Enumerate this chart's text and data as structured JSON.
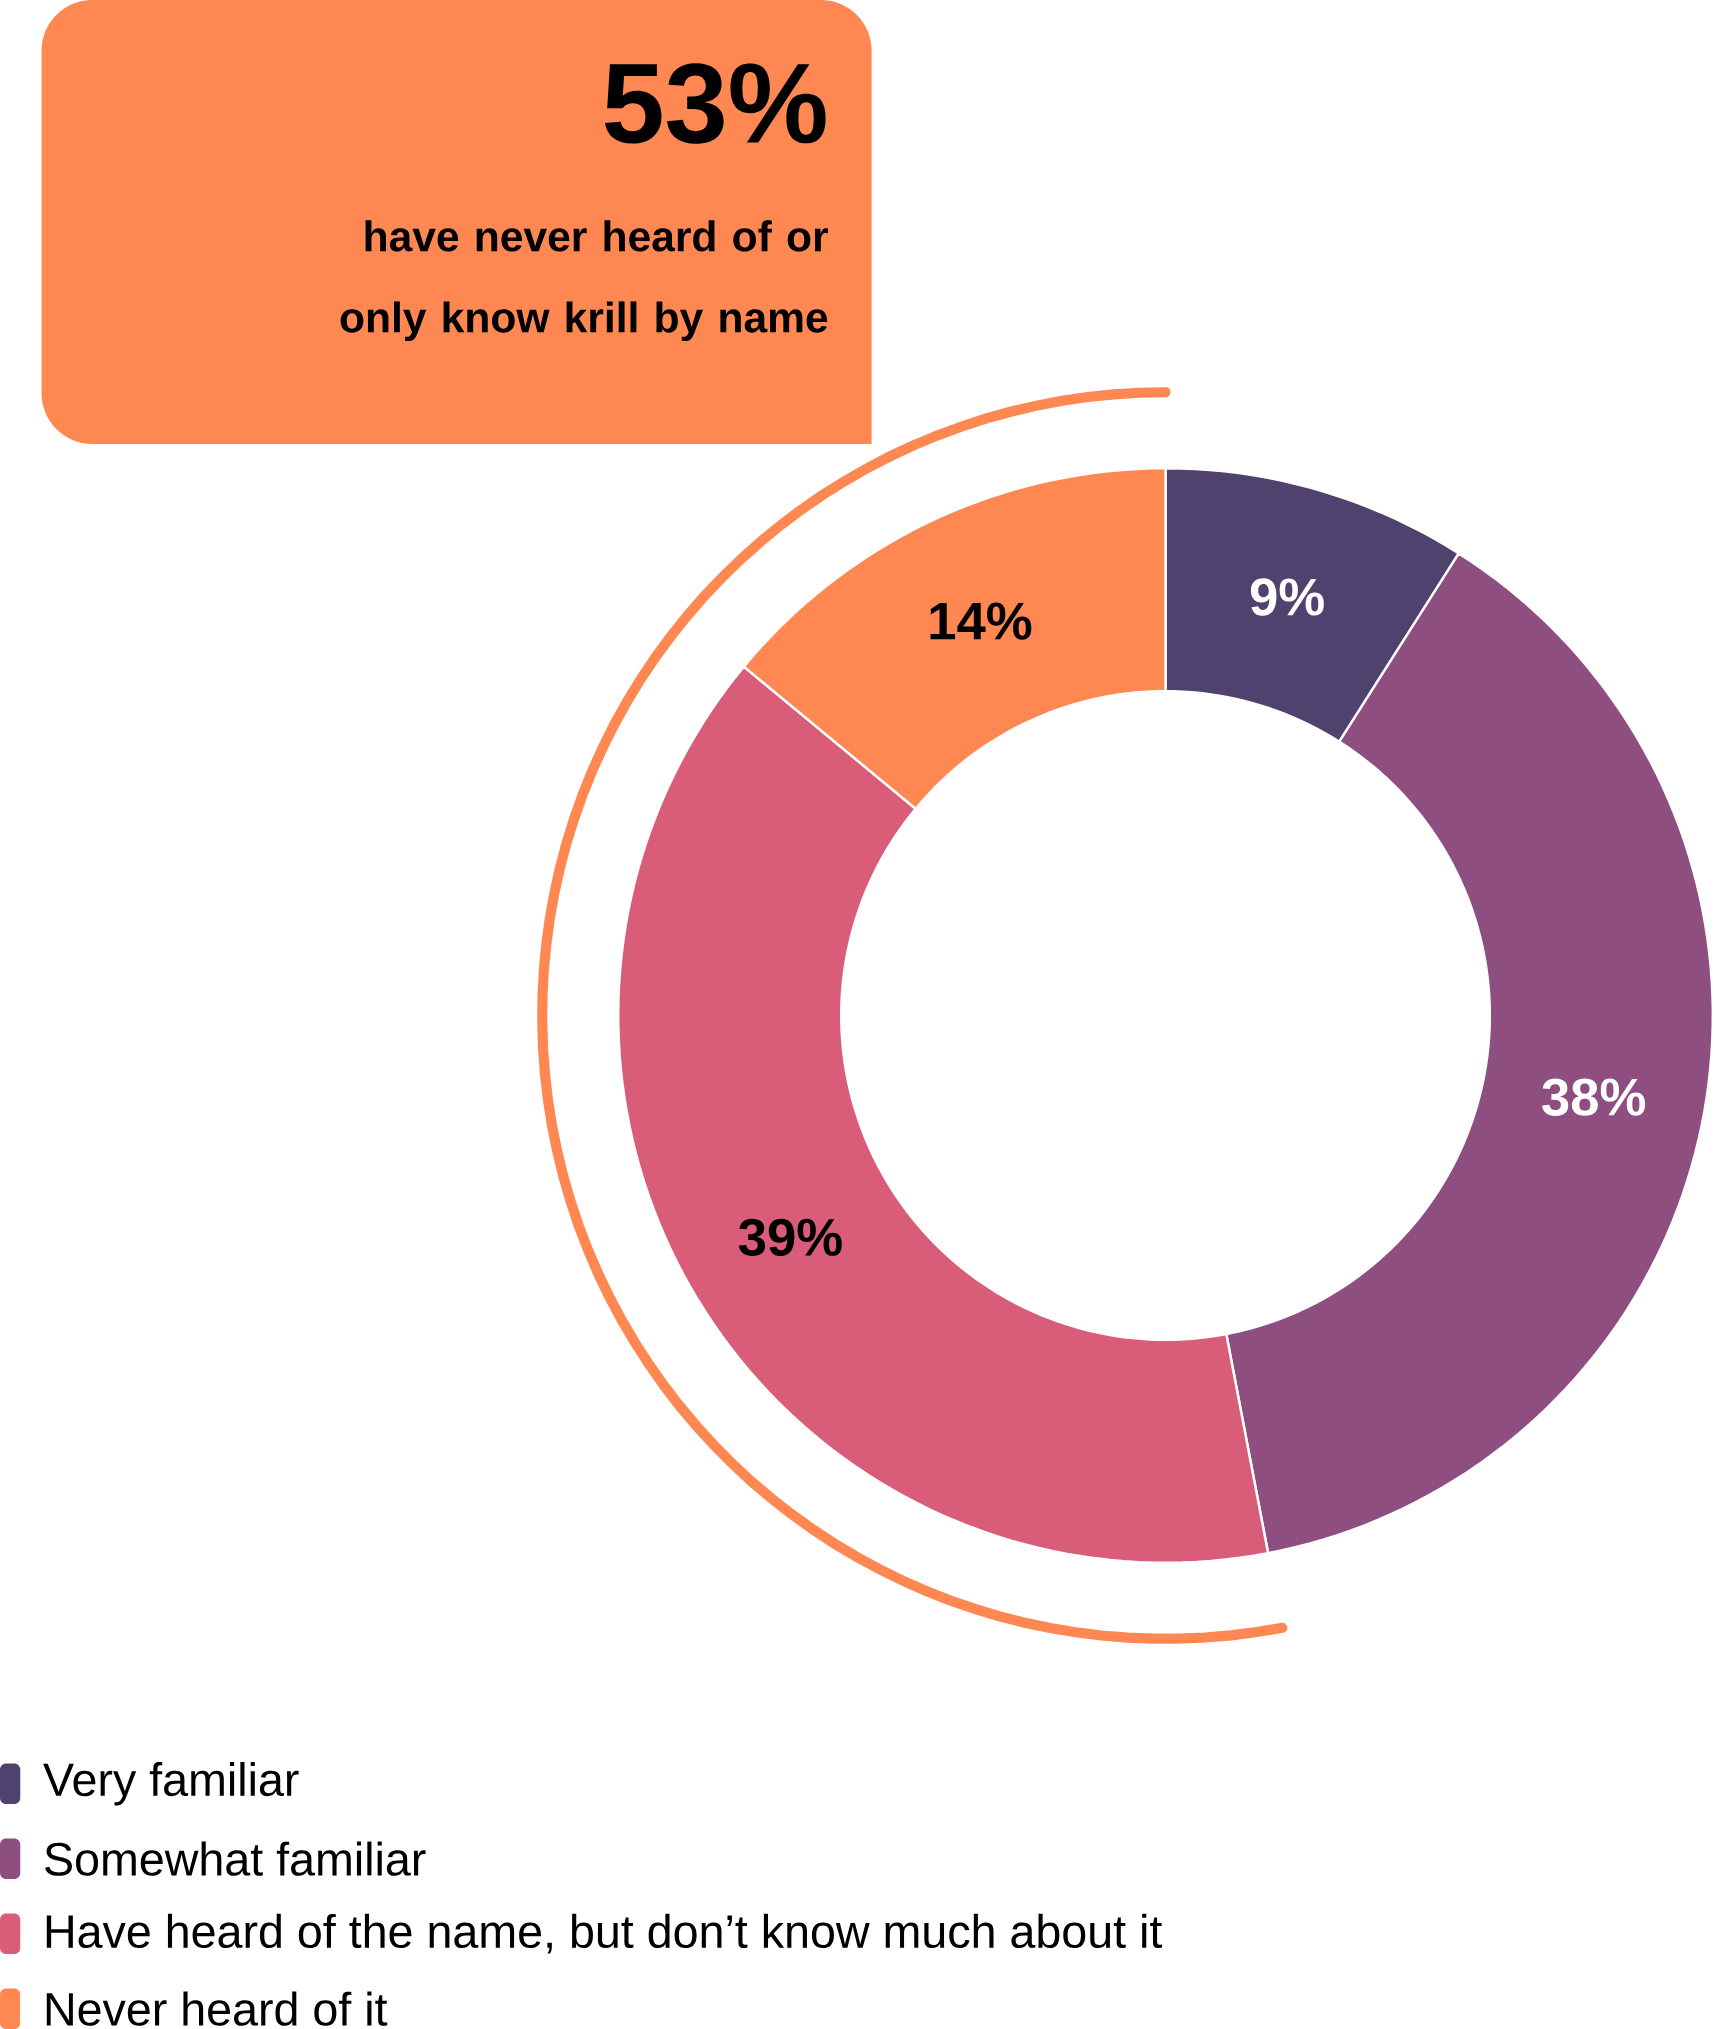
{
  "chart_data": {
    "type": "donut",
    "categories": [
      "Very familiar",
      "Somewhat familiar",
      "Have heard of the name, but don’t know much about it",
      "Never heard of it"
    ],
    "values": [
      9,
      38,
      39,
      14
    ],
    "colors": [
      "#4f426e",
      "#8f4e80",
      "#d95c78",
      "#ff8751"
    ],
    "value_labels": [
      "9%",
      "38%",
      "39%",
      "14%"
    ],
    "annotations": [
      "53%",
      "have never heard of or only know krill by name"
    ],
    "legend": "bottom left"
  }
}
